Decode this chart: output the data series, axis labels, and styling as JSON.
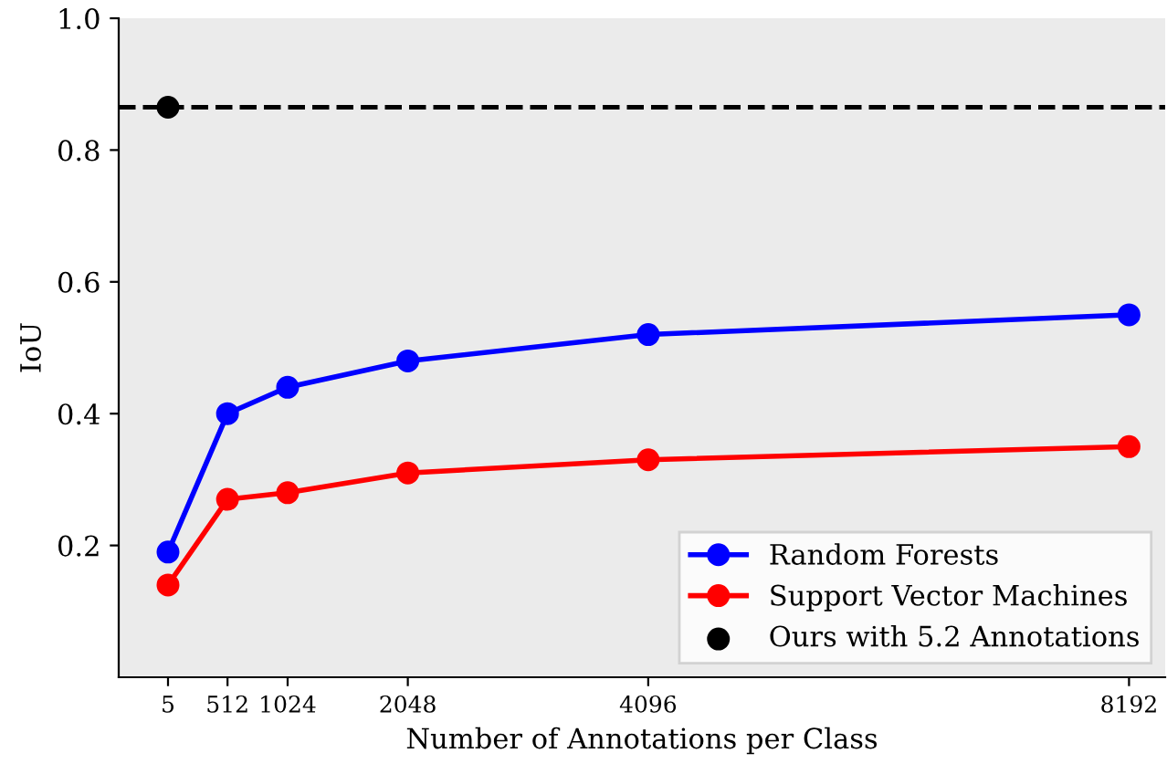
{
  "chart_data": {
    "type": "line",
    "xlabel": "Number of Annotations per Class",
    "ylabel": "IoU",
    "xlim": [
      -415,
      8500
    ],
    "xticks": [
      5,
      512,
      1024,
      2048,
      4096,
      8192
    ],
    "ylim": [
      0,
      1
    ],
    "yticks": [
      0.2,
      0.4,
      0.6,
      0.8,
      {
        "value": 1,
        "label": "1.0"
      }
    ],
    "marker": "circle",
    "legend": "bottom right",
    "grid": false,
    "series": [
      {
        "name": "Random Forests",
        "color": "#0000ff",
        "x": [
          5,
          512,
          1024,
          2048,
          4096,
          8192
        ],
        "values": [
          0.19,
          0.4,
          0.44,
          0.48,
          0.52,
          0.55
        ]
      },
      {
        "name": "Support Vector Machines",
        "color": "#ff0000",
        "x": [
          5,
          512,
          1024,
          2048,
          4096,
          8192
        ],
        "values": [
          0.14,
          0.27,
          0.28,
          0.31,
          0.33,
          0.35
        ]
      },
      {
        "name": "Ours with 5.2 Annotations",
        "color": "#000000",
        "type": "scatter",
        "x": [
          5
        ],
        "values": [
          0.865
        ]
      }
    ],
    "ref_lines": [
      {
        "axis": "y",
        "value": 0.865,
        "color": "#000000",
        "line_style": "dashed"
      }
    ]
  }
}
